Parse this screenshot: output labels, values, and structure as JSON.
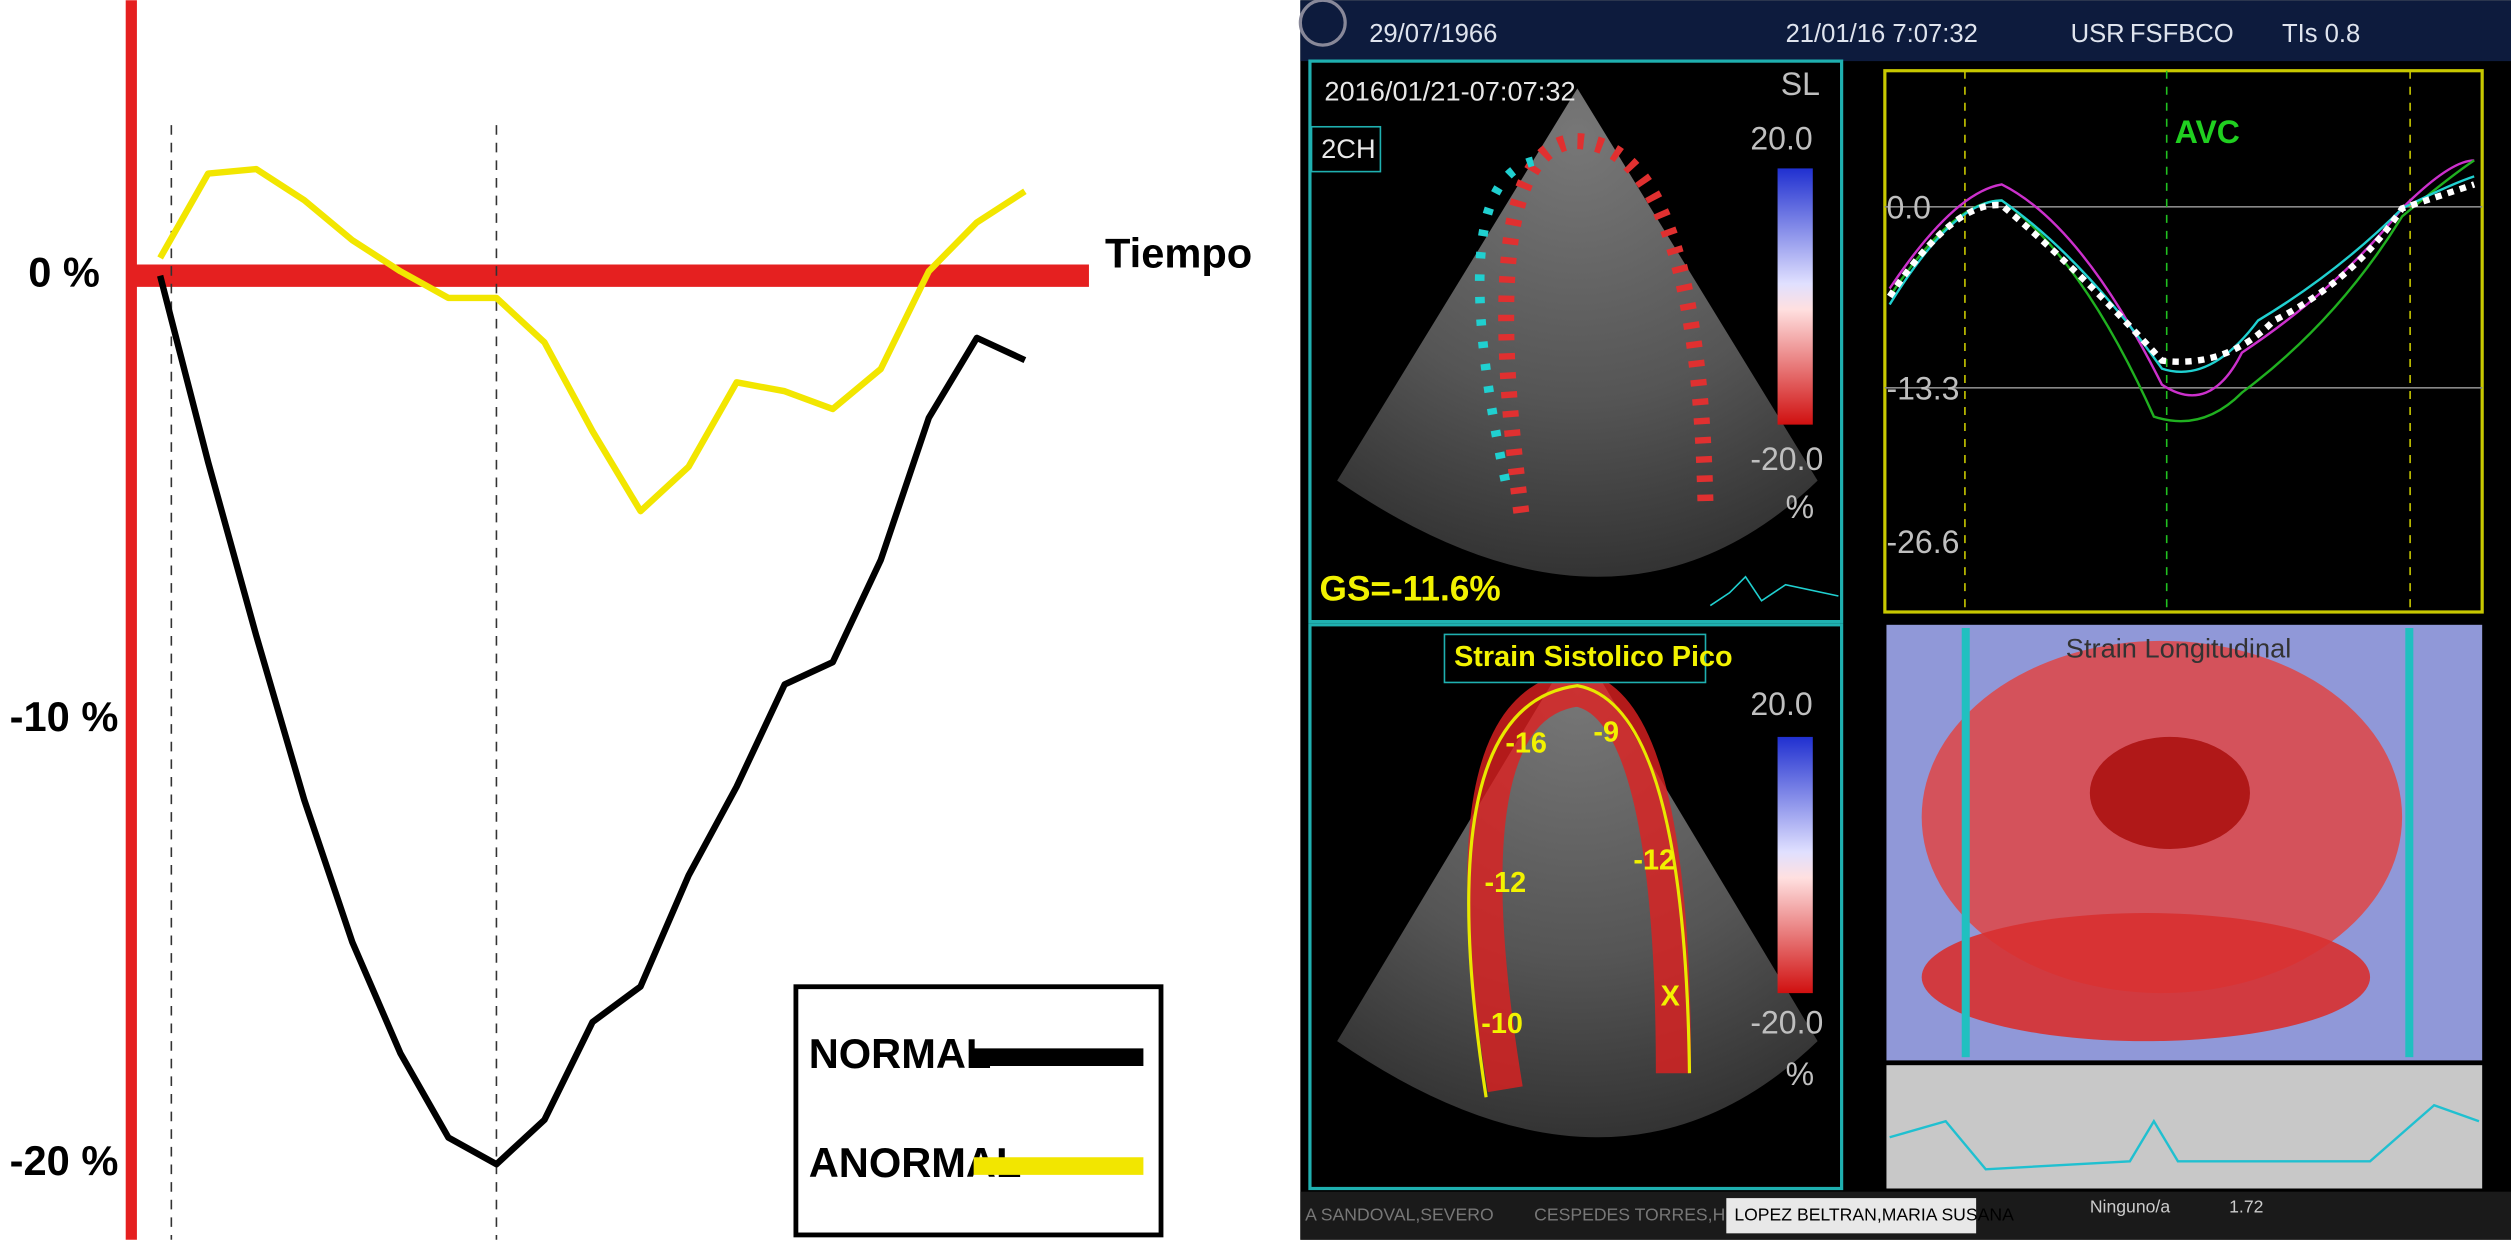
{
  "chart_data": {
    "type": "line",
    "axis_label": "Tiempo",
    "categories": [
      null,
      null,
      null,
      null,
      null,
      null,
      null,
      null,
      null,
      null,
      null,
      null,
      null,
      null,
      null,
      null,
      null,
      null,
      null
    ],
    "series": [
      {
        "name": "NORMAL",
        "color": "#000000",
        "values": [
          0,
          -4.2,
          -8.1,
          -11.8,
          -15,
          -17.5,
          -19.4,
          -20,
          -19,
          -16.8,
          -16,
          -13.5,
          -11.5,
          -9.2,
          -8.7,
          -6.4,
          -3.2,
          -1.4,
          -1.9
        ]
      },
      {
        "name": "ANORMAL",
        "color": "#f2e600",
        "values": [
          0.4,
          2.3,
          2.4,
          1.7,
          0.8,
          0.1,
          -0.5,
          -0.5,
          -1.5,
          -3.5,
          -5.3,
          -4.3,
          -2.4,
          -2.6,
          -3,
          -2.1,
          0.1,
          1.2,
          1.9
        ]
      }
    ],
    "ylim": [
      -21.7,
      6.2
    ],
    "yticks": [
      {
        "value": 0,
        "label": "0 %"
      },
      {
        "value": -10,
        "label": "-10 %"
      },
      {
        "value": -20,
        "label": "-20 %"
      }
    ],
    "legend": "bottom-right"
  },
  "screen": {
    "header": {
      "birth": "29/07/1966",
      "datetime": "21/01/16 7:07:32",
      "user": "USR",
      "station": "FSFBCO",
      "tis": "TIs 0.8"
    },
    "top_view": {
      "timestamp": "2016/01/21-07:07:32",
      "mode": "SL",
      "view": "2CH",
      "scale_max": "20.0",
      "scale_min": "-20.0",
      "unit": "%",
      "global_strain": "GS=-11.6%"
    },
    "bottom_view": {
      "title": "Strain Sistolico Pico",
      "scale_max": "20.0",
      "scale_min": "-20.0",
      "unit": "%",
      "segments": [
        "-16",
        "-9",
        "-12",
        "-12",
        "-10",
        "X"
      ]
    },
    "curve_panel": {
      "event": "AVC",
      "ticks": [
        "0.0",
        "-13.3",
        "-26.6"
      ]
    },
    "map_panel": {
      "title": "Strain Longitudinal"
    },
    "taskbar": {
      "tabs": [
        "A SANDOVAL,SEVERO",
        "CESPEDES TORRES,HELIODORO",
        "LOPEZ BELTRAN,MARIA SUSANA"
      ],
      "filter": "Ninguno/a",
      "zoom": "1.72"
    }
  }
}
